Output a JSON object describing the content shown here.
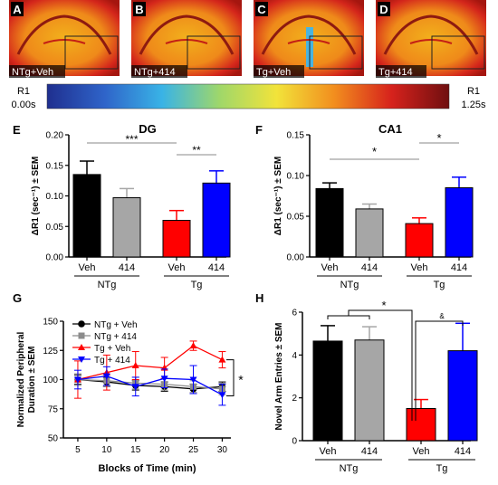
{
  "figure": {
    "panels_top": [
      {
        "letter": "A",
        "label": "NTg+Veh"
      },
      {
        "letter": "B",
        "label": "NTg+414"
      },
      {
        "letter": "C",
        "label": "Tg+Veh"
      },
      {
        "letter": "D",
        "label": "Tg+414"
      }
    ],
    "colorbar": {
      "name": "R1",
      "min_label": "0.00s",
      "max_label": "1.25s",
      "stops": [
        "#1f2f8f",
        "#2f64c9",
        "#39b3e6",
        "#9fd76a",
        "#f2e33a",
        "#f28e1e",
        "#d6221c",
        "#6f0f10"
      ]
    },
    "colors": {
      "NTg_Veh": "#000000",
      "NTg_414": "#a6a6a6",
      "Tg_Veh": "#ff0000",
      "Tg_414": "#0000ff"
    },
    "group_labels": {
      "veh": "Veh",
      "drug": "414",
      "ntg": "NTg",
      "tg": "Tg"
    }
  },
  "chart_data": [
    {
      "panel": "E",
      "type": "bar",
      "title": "DG",
      "ylabel": "ΔR1 (sec⁻¹) ± SEM",
      "ylim": [
        0,
        0.2
      ],
      "yticks": [
        "0.00",
        "0.05",
        "0.10",
        "0.15",
        "0.20"
      ],
      "categories": [
        "Veh",
        "414",
        "Veh",
        "414"
      ],
      "groups": [
        "NTg",
        "Tg"
      ],
      "values": [
        0.135,
        0.097,
        0.06,
        0.121
      ],
      "errors": [
        0.022,
        0.015,
        0.016,
        0.02
      ],
      "significance": [
        {
          "label": "***",
          "from": 0,
          "to": 2
        },
        {
          "label": "**",
          "from": 2,
          "to": 3
        }
      ]
    },
    {
      "panel": "F",
      "type": "bar",
      "title": "CA1",
      "ylabel": "ΔR1 (sec⁻¹) ± SEM",
      "ylim": [
        0,
        0.15
      ],
      "yticks": [
        "0.00",
        "0.05",
        "0.10",
        "0.15"
      ],
      "categories": [
        "Veh",
        "414",
        "Veh",
        "414"
      ],
      "groups": [
        "NTg",
        "Tg"
      ],
      "values": [
        0.084,
        0.059,
        0.041,
        0.085
      ],
      "errors": [
        0.007,
        0.006,
        0.007,
        0.013
      ],
      "significance": [
        {
          "label": "*",
          "from": 0,
          "to": 2
        },
        {
          "label": "*",
          "from": 2,
          "to": 3
        }
      ]
    },
    {
      "panel": "G",
      "type": "line",
      "xlabel": "Blocks of Time (min)",
      "ylabel": "Normalized Peripheral Duration ± SEM",
      "x": [
        5,
        10,
        15,
        20,
        25,
        30
      ],
      "xlim": [
        2.5,
        31.5
      ],
      "ylim": [
        50,
        150
      ],
      "yticks": [
        "50",
        "75",
        "100",
        "125",
        "150"
      ],
      "series": [
        {
          "name": "NTg + Veh",
          "values": [
            100,
            98,
            95,
            94,
            92,
            94
          ],
          "errors": [
            4,
            4,
            4,
            4,
            4,
            4
          ],
          "marker": "circle",
          "color": "#000000"
        },
        {
          "name": "NTg + 414",
          "values": [
            100,
            99,
            97,
            96,
            94,
            92
          ],
          "errors": [
            5,
            5,
            5,
            5,
            5,
            5
          ],
          "marker": "square",
          "color": "#8c8c8c"
        },
        {
          "name": "Tg + Veh",
          "values": [
            100,
            106,
            112,
            110,
            129,
            117
          ],
          "errors": [
            16,
            15,
            12,
            9,
            4,
            7
          ],
          "marker": "triangle-up",
          "color": "#ff0000"
        },
        {
          "name": "Tg + 414",
          "values": [
            100,
            103,
            94,
            101,
            100,
            87
          ],
          "errors": [
            8,
            8,
            8,
            8,
            12,
            9
          ],
          "marker": "triangle-down",
          "color": "#0000ff"
        }
      ],
      "significance": "*",
      "legend": "top-left"
    },
    {
      "panel": "H",
      "type": "bar",
      "ylabel": "Novel Arm Entries ± SEM",
      "ylim": [
        0,
        6
      ],
      "yticks": [
        "0",
        "2",
        "4",
        "6"
      ],
      "categories": [
        "Veh",
        "414",
        "Veh",
        "414"
      ],
      "groups": [
        "NTg",
        "Tg"
      ],
      "values": [
        4.65,
        4.7,
        1.5,
        4.2
      ],
      "errors": [
        0.72,
        0.62,
        0.42,
        1.28
      ],
      "significance": [
        {
          "label": "*"
        },
        {
          "label": "&"
        }
      ]
    }
  ]
}
